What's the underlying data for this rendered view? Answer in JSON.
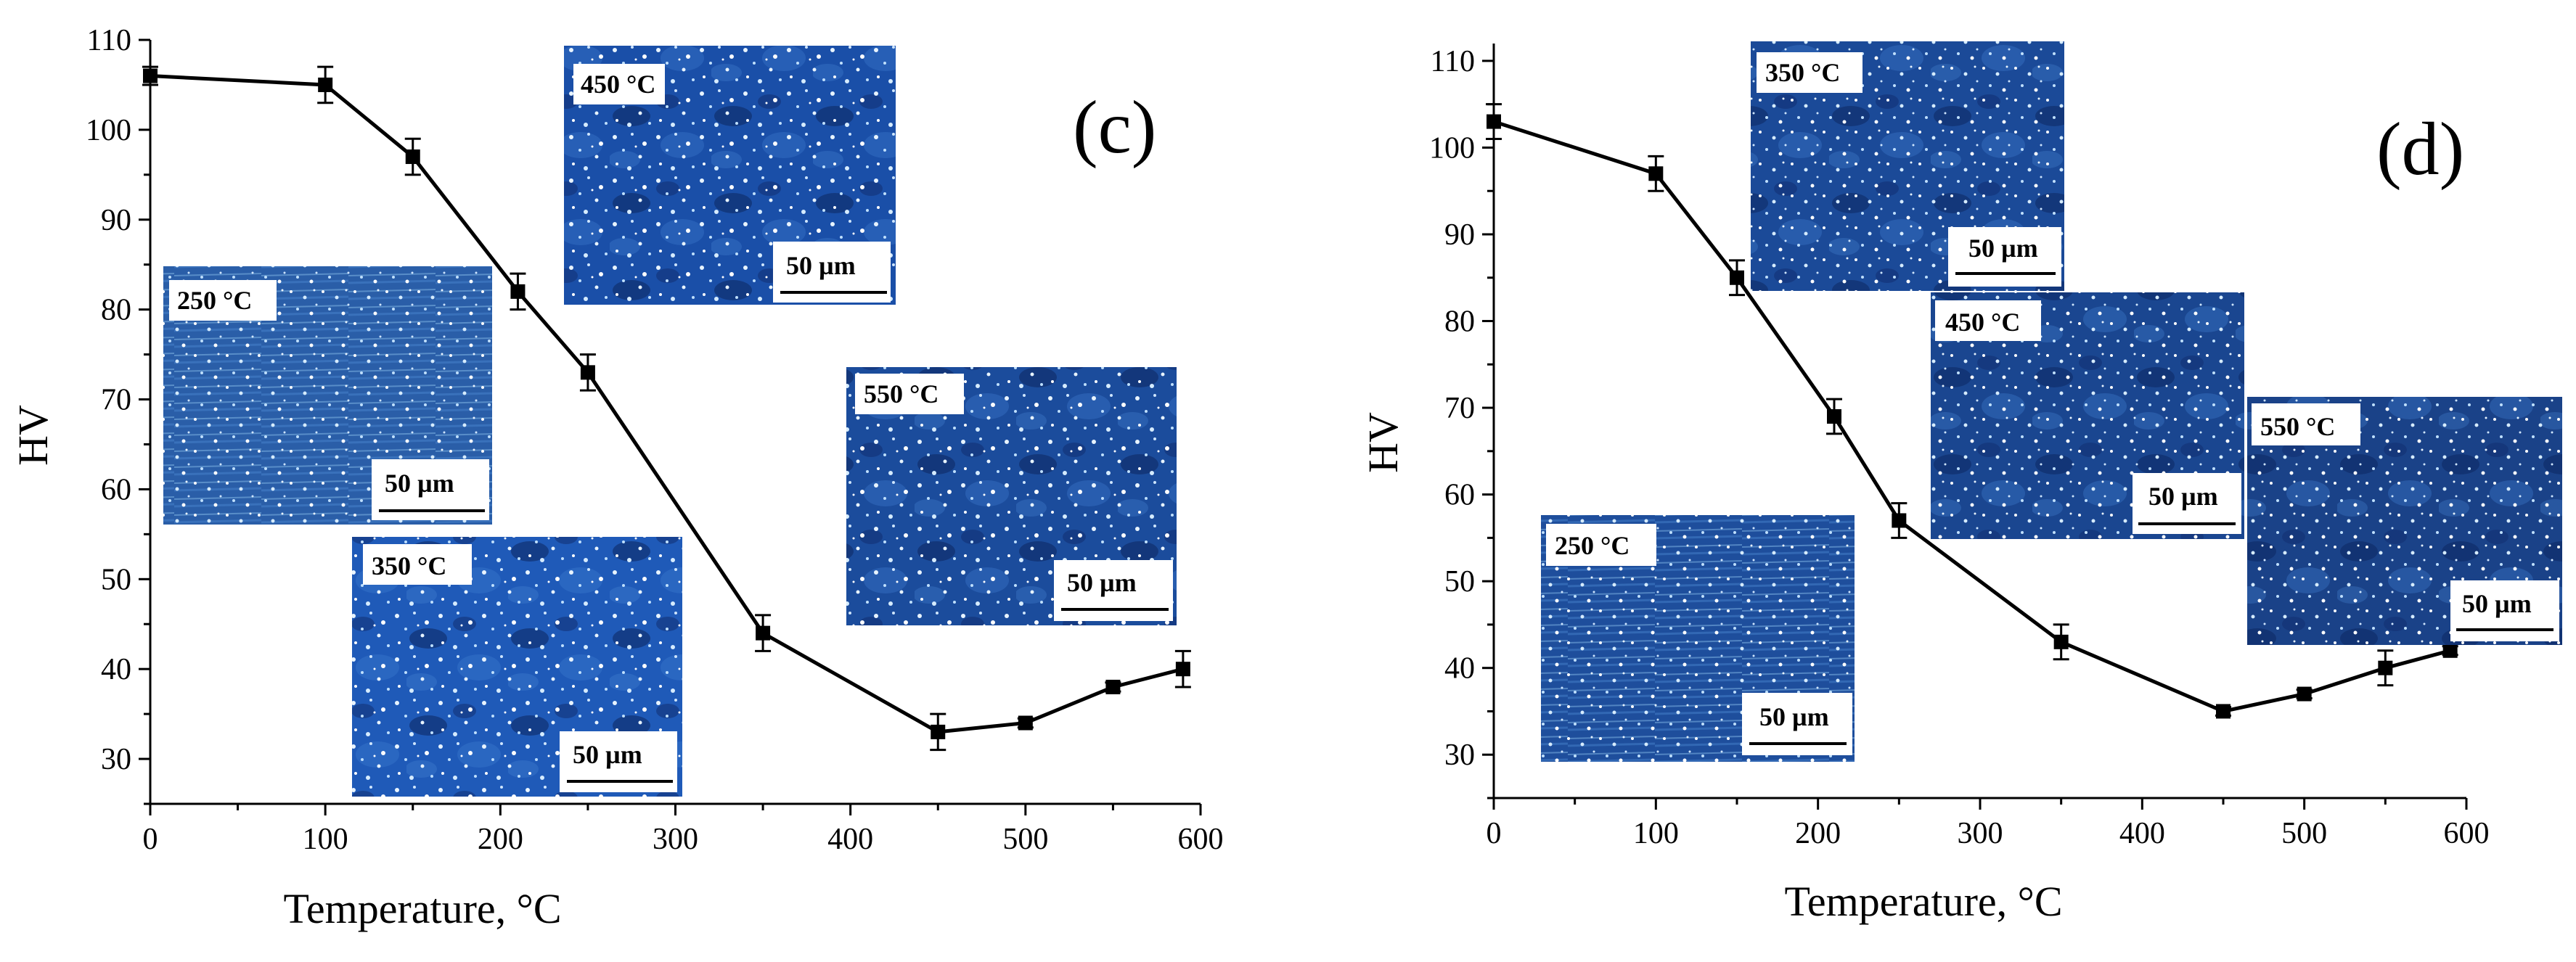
{
  "chart_data": [
    {
      "type": "line",
      "panel_label": "(c)",
      "xlabel": "Temperature, °C",
      "ylabel": "HV",
      "xlim": [
        0,
        600
      ],
      "ylim": [
        25,
        110
      ],
      "x_ticks": [
        "0",
        "100",
        "200",
        "300",
        "400",
        "500",
        "600"
      ],
      "y_ticks": [
        "30",
        "40",
        "50",
        "60",
        "70",
        "80",
        "90",
        "100",
        "110"
      ],
      "series": [
        {
          "name": "HV",
          "x": [
            0,
            100,
            150,
            210,
            250,
            350,
            450,
            500,
            550,
            590
          ],
          "y": [
            106,
            105,
            97,
            82,
            73,
            44,
            33,
            34,
            38,
            40
          ],
          "err": [
            1,
            2,
            2,
            2,
            2,
            2,
            2,
            0.5,
            0.5,
            2
          ]
        }
      ],
      "insets": [
        {
          "label": "450 °C",
          "scale": "50 µm",
          "color": "#1a4fa8"
        },
        {
          "label": "250 °C",
          "scale": "50 µm",
          "color": "#2a5ea8"
        },
        {
          "label": "550 °C",
          "scale": "50 µm",
          "color": "#1b4c9c"
        },
        {
          "label": "350 °C",
          "scale": "50 µm",
          "color": "#1f5ab8"
        }
      ]
    },
    {
      "type": "line",
      "panel_label": "(d)",
      "xlabel": "Temperature, °C",
      "ylabel": "HV",
      "xlim": [
        0,
        600
      ],
      "ylim": [
        25,
        112
      ],
      "x_ticks": [
        "0",
        "100",
        "200",
        "300",
        "400",
        "500",
        "600"
      ],
      "y_ticks": [
        "30",
        "40",
        "50",
        "60",
        "70",
        "80",
        "90",
        "100",
        "110"
      ],
      "series": [
        {
          "name": "HV",
          "x": [
            0,
            100,
            150,
            210,
            250,
            350,
            450,
            500,
            550,
            590
          ],
          "y": [
            103,
            97,
            85,
            69,
            57,
            43,
            35,
            37,
            40,
            42
          ],
          "err": [
            2,
            2,
            2,
            2,
            2,
            2,
            0.5,
            0.5,
            2,
            0.5
          ]
        }
      ],
      "insets": [
        {
          "label": "350 °C",
          "scale": "50 µm",
          "color": "#1b4a98"
        },
        {
          "label": "450 °C",
          "scale": "50 µm",
          "color": "#1a4690"
        },
        {
          "label": "550 °C",
          "scale": "50 µm",
          "color": "#1a4288"
        },
        {
          "label": "250 °C",
          "scale": "50 µm",
          "color": "#1e4e9c"
        }
      ]
    }
  ],
  "colors": {
    "line": "#000000",
    "inset_dark": "#0a1c4a",
    "speckle": "#e8f4ff",
    "label_bg": "#ffffff"
  }
}
